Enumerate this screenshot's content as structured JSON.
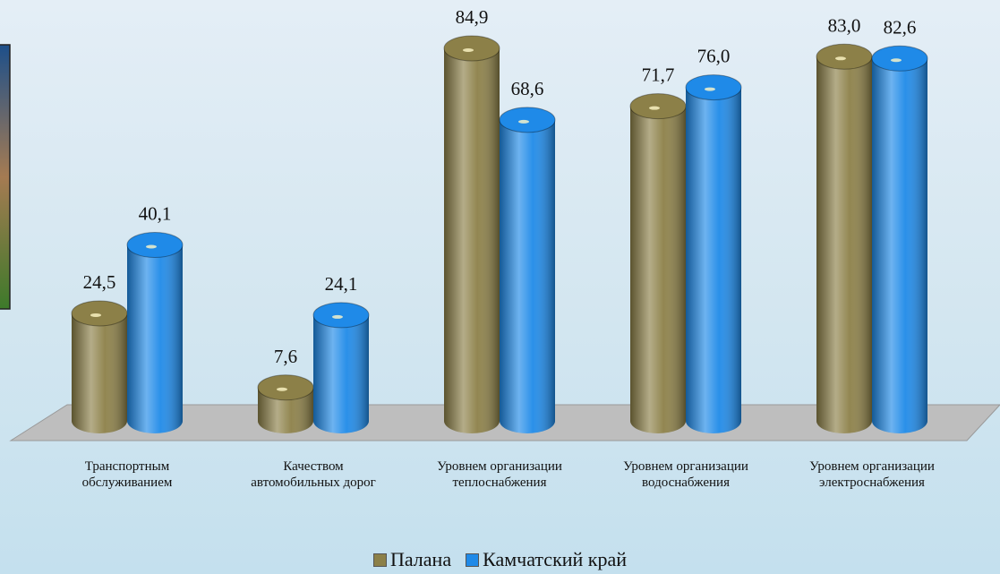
{
  "chart_data": {
    "type": "bar",
    "categories": [
      "Транспортным обслуживанием",
      "Качеством автомобильных дорог",
      "Уровнем организации теплоснабжения",
      "Уровнем организации водоснабжения",
      "Уровнем организации электроснабжения"
    ],
    "series": [
      {
        "name": "Палана",
        "color": "#8c8048",
        "values": [
          24.5,
          7.6,
          84.9,
          71.7,
          83.0
        ],
        "value_labels": [
          "24,5",
          "7,6",
          "84,9",
          "71,7",
          "83,0"
        ]
      },
      {
        "name": "Камчатский край",
        "color": "#1f8ae8",
        "values": [
          40.1,
          24.1,
          68.6,
          76.0,
          82.6
        ],
        "value_labels": [
          "40,1",
          "24,1",
          "68,6",
          "76,0",
          "82,6"
        ]
      }
    ],
    "ylim": [
      0,
      90
    ],
    "grid": false,
    "legend": "bottom"
  }
}
